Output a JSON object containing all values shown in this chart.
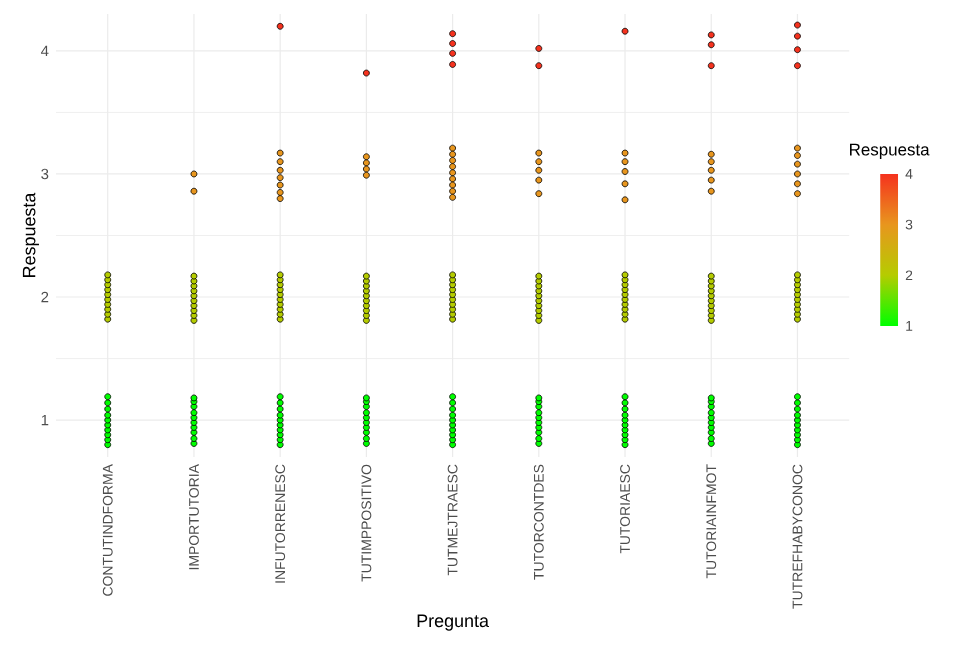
{
  "chart_data": {
    "type": "scatter",
    "xlabel": "Pregunta",
    "ylabel": "Respuesta",
    "clabel": "Respuesta",
    "categories": [
      "CONTUTINDFORMA",
      "IMPORTUTORIA",
      "INFUTORRENESC",
      "TUTIMPPOSITIVO",
      "TUTMEJTRAESC",
      "TUTORCONTDES",
      "TUTORIAESC",
      "TUTORIAINFMOT",
      "TUTREFHABYCONOC"
    ],
    "ylim": [
      0.7,
      4.3
    ],
    "yticks": [
      1,
      2,
      3,
      4
    ],
    "clim": [
      1,
      4
    ],
    "cticks": [
      1,
      2,
      3,
      4
    ],
    "grid": true,
    "marker": "circle",
    "series": [
      {
        "x": [
          "CONTUTINDFORMA",
          "CONTUTINDFORMA",
          "CONTUTINDFORMA",
          "CONTUTINDFORMA",
          "CONTUTINDFORMA",
          "CONTUTINDFORMA",
          "CONTUTINDFORMA",
          "CONTUTINDFORMA",
          "CONTUTINDFORMA",
          "CONTUTINDFORMA",
          "IMPORTUTORIA",
          "IMPORTUTORIA",
          "IMPORTUTORIA",
          "IMPORTUTORIA",
          "IMPORTUTORIA",
          "IMPORTUTORIA",
          "IMPORTUTORIA",
          "IMPORTUTORIA",
          "IMPORTUTORIA",
          "IMPORTUTORIA",
          "INFUTORRENESC",
          "INFUTORRENESC",
          "INFUTORRENESC",
          "INFUTORRENESC",
          "INFUTORRENESC",
          "INFUTORRENESC",
          "INFUTORRENESC",
          "INFUTORRENESC",
          "INFUTORRENESC",
          "INFUTORRENESC",
          "TUTIMPPOSITIVO",
          "TUTIMPPOSITIVO",
          "TUTIMPPOSITIVO",
          "TUTIMPPOSITIVO",
          "TUTIMPPOSITIVO",
          "TUTIMPPOSITIVO",
          "TUTIMPPOSITIVO",
          "TUTIMPPOSITIVO",
          "TUTIMPPOSITIVO",
          "TUTIMPPOSITIVO",
          "TUTMEJTRAESC",
          "TUTMEJTRAESC",
          "TUTMEJTRAESC",
          "TUTMEJTRAESC",
          "TUTMEJTRAESC",
          "TUTMEJTRAESC",
          "TUTMEJTRAESC",
          "TUTMEJTRAESC",
          "TUTMEJTRAESC",
          "TUTMEJTRAESC",
          "TUTORCONTDES",
          "TUTORCONTDES",
          "TUTORCONTDES",
          "TUTORCONTDES",
          "TUTORCONTDES",
          "TUTORCONTDES",
          "TUTORCONTDES",
          "TUTORCONTDES",
          "TUTORCONTDES",
          "TUTORCONTDES",
          "TUTORIAESC",
          "TUTORIAESC",
          "TUTORIAESC",
          "TUTORIAESC",
          "TUTORIAESC",
          "TUTORIAESC",
          "TUTORIAESC",
          "TUTORIAESC",
          "TUTORIAESC",
          "TUTORIAESC",
          "TUTORIAINFMOT",
          "TUTORIAINFMOT",
          "TUTORIAINFMOT",
          "TUTORIAINFMOT",
          "TUTORIAINFMOT",
          "TUTORIAINFMOT",
          "TUTORIAINFMOT",
          "TUTORIAINFMOT",
          "TUTORIAINFMOT",
          "TUTORIAINFMOT",
          "TUTREFHABYCONOC",
          "TUTREFHABYCONOC",
          "TUTREFHABYCONOC",
          "TUTREFHABYCONOC",
          "TUTREFHABYCONOC",
          "TUTREFHABYCONOC",
          "TUTREFHABYCONOC",
          "TUTREFHABYCONOC",
          "TUTREFHABYCONOC",
          "TUTREFHABYCONOC"
        ],
        "values": [
          0.8,
          0.84,
          0.88,
          0.92,
          0.96,
          1.0,
          1.04,
          1.09,
          1.14,
          1.19,
          0.81,
          0.85,
          0.9,
          0.94,
          0.98,
          1.02,
          1.06,
          1.11,
          1.15,
          1.18,
          0.8,
          0.84,
          0.88,
          0.92,
          0.96,
          1.0,
          1.04,
          1.09,
          1.14,
          1.19,
          0.81,
          0.85,
          0.9,
          0.94,
          0.98,
          1.02,
          1.06,
          1.11,
          1.15,
          1.18,
          0.8,
          0.84,
          0.88,
          0.92,
          0.96,
          1.0,
          1.04,
          1.09,
          1.14,
          1.19,
          0.81,
          0.85,
          0.9,
          0.94,
          0.98,
          1.02,
          1.06,
          1.11,
          1.15,
          1.18,
          0.8,
          0.84,
          0.88,
          0.92,
          0.96,
          1.0,
          1.04,
          1.09,
          1.14,
          1.19,
          0.81,
          0.85,
          0.9,
          0.94,
          0.98,
          1.02,
          1.06,
          1.11,
          1.15,
          1.18,
          0.8,
          0.84,
          0.88,
          0.92,
          0.96,
          1.0,
          1.04,
          1.09,
          1.14,
          1.19
        ],
        "cvalues": [
          1,
          1,
          1,
          1,
          1,
          1,
          1,
          1,
          1,
          1,
          1,
          1,
          1,
          1,
          1,
          1,
          1,
          1,
          1,
          1,
          1,
          1,
          1,
          1,
          1,
          1,
          1,
          1,
          1,
          1,
          1,
          1,
          1,
          1,
          1,
          1,
          1,
          1,
          1,
          1,
          1,
          1,
          1,
          1,
          1,
          1,
          1,
          1,
          1,
          1,
          1,
          1,
          1,
          1,
          1,
          1,
          1,
          1,
          1,
          1,
          1,
          1,
          1,
          1,
          1,
          1,
          1,
          1,
          1,
          1,
          1,
          1,
          1,
          1,
          1,
          1,
          1,
          1,
          1,
          1,
          1,
          1,
          1,
          1,
          1,
          1,
          1,
          1,
          1,
          1
        ]
      },
      {
        "x": [
          "CONTUTINDFORMA",
          "CONTUTINDFORMA",
          "CONTUTINDFORMA",
          "CONTUTINDFORMA",
          "CONTUTINDFORMA",
          "CONTUTINDFORMA",
          "CONTUTINDFORMA",
          "CONTUTINDFORMA",
          "CONTUTINDFORMA",
          "CONTUTINDFORMA",
          "IMPORTUTORIA",
          "IMPORTUTORIA",
          "IMPORTUTORIA",
          "IMPORTUTORIA",
          "IMPORTUTORIA",
          "IMPORTUTORIA",
          "IMPORTUTORIA",
          "IMPORTUTORIA",
          "IMPORTUTORIA",
          "IMPORTUTORIA",
          "INFUTORRENESC",
          "INFUTORRENESC",
          "INFUTORRENESC",
          "INFUTORRENESC",
          "INFUTORRENESC",
          "INFUTORRENESC",
          "INFUTORRENESC",
          "INFUTORRENESC",
          "INFUTORRENESC",
          "INFUTORRENESC",
          "TUTIMPPOSITIVO",
          "TUTIMPPOSITIVO",
          "TUTIMPPOSITIVO",
          "TUTIMPPOSITIVO",
          "TUTIMPPOSITIVO",
          "TUTIMPPOSITIVO",
          "TUTIMPPOSITIVO",
          "TUTIMPPOSITIVO",
          "TUTIMPPOSITIVO",
          "TUTIMPPOSITIVO",
          "TUTMEJTRAESC",
          "TUTMEJTRAESC",
          "TUTMEJTRAESC",
          "TUTMEJTRAESC",
          "TUTMEJTRAESC",
          "TUTMEJTRAESC",
          "TUTMEJTRAESC",
          "TUTMEJTRAESC",
          "TUTMEJTRAESC",
          "TUTMEJTRAESC",
          "TUTORCONTDES",
          "TUTORCONTDES",
          "TUTORCONTDES",
          "TUTORCONTDES",
          "TUTORCONTDES",
          "TUTORCONTDES",
          "TUTORCONTDES",
          "TUTORCONTDES",
          "TUTORCONTDES",
          "TUTORCONTDES",
          "TUTORIAESC",
          "TUTORIAESC",
          "TUTORIAESC",
          "TUTORIAESC",
          "TUTORIAESC",
          "TUTORIAESC",
          "TUTORIAESC",
          "TUTORIAESC",
          "TUTORIAESC",
          "TUTORIAESC",
          "TUTORIAINFMOT",
          "TUTORIAINFMOT",
          "TUTORIAINFMOT",
          "TUTORIAINFMOT",
          "TUTORIAINFMOT",
          "TUTORIAINFMOT",
          "TUTORIAINFMOT",
          "TUTORIAINFMOT",
          "TUTORIAINFMOT",
          "TUTORIAINFMOT",
          "TUTREFHABYCONOC",
          "TUTREFHABYCONOC",
          "TUTREFHABYCONOC",
          "TUTREFHABYCONOC",
          "TUTREFHABYCONOC",
          "TUTREFHABYCONOC",
          "TUTREFHABYCONOC",
          "TUTREFHABYCONOC",
          "TUTREFHABYCONOC",
          "TUTREFHABYCONOC"
        ],
        "values": [
          1.82,
          1.86,
          1.9,
          1.94,
          1.98,
          2.02,
          2.06,
          2.1,
          2.14,
          2.18,
          1.81,
          1.85,
          1.89,
          1.93,
          1.97,
          2.01,
          2.05,
          2.09,
          2.13,
          2.17,
          1.82,
          1.86,
          1.9,
          1.94,
          1.98,
          2.02,
          2.06,
          2.1,
          2.14,
          2.18,
          1.81,
          1.85,
          1.89,
          1.93,
          1.97,
          2.01,
          2.05,
          2.09,
          2.13,
          2.17,
          1.82,
          1.86,
          1.9,
          1.94,
          1.98,
          2.02,
          2.06,
          2.1,
          2.14,
          2.18,
          1.81,
          1.85,
          1.89,
          1.93,
          1.97,
          2.01,
          2.05,
          2.09,
          2.13,
          2.17,
          1.82,
          1.86,
          1.9,
          1.94,
          1.98,
          2.02,
          2.06,
          2.1,
          2.14,
          2.18,
          1.81,
          1.85,
          1.89,
          1.93,
          1.97,
          2.01,
          2.05,
          2.09,
          2.13,
          2.17,
          1.82,
          1.86,
          1.9,
          1.94,
          1.98,
          2.02,
          2.06,
          2.1,
          2.14,
          2.18
        ],
        "cvalues": [
          2,
          2,
          2,
          2,
          2,
          2,
          2,
          2,
          2,
          2,
          2,
          2,
          2,
          2,
          2,
          2,
          2,
          2,
          2,
          2,
          2,
          2,
          2,
          2,
          2,
          2,
          2,
          2,
          2,
          2,
          2,
          2,
          2,
          2,
          2,
          2,
          2,
          2,
          2,
          2,
          2,
          2,
          2,
          2,
          2,
          2,
          2,
          2,
          2,
          2,
          2,
          2,
          2,
          2,
          2,
          2,
          2,
          2,
          2,
          2,
          2,
          2,
          2,
          2,
          2,
          2,
          2,
          2,
          2,
          2,
          2,
          2,
          2,
          2,
          2,
          2,
          2,
          2,
          2,
          2,
          2,
          2,
          2,
          2,
          2,
          2,
          2,
          2,
          2,
          2
        ]
      },
      {
        "x": [
          "IMPORTUTORIA",
          "IMPORTUTORIA",
          "INFUTORRENESC",
          "INFUTORRENESC",
          "INFUTORRENESC",
          "INFUTORRENESC",
          "INFUTORRENESC",
          "INFUTORRENESC",
          "INFUTORRENESC",
          "TUTIMPPOSITIVO",
          "TUTIMPPOSITIVO",
          "TUTIMPPOSITIVO",
          "TUTIMPPOSITIVO",
          "TUTMEJTRAESC",
          "TUTMEJTRAESC",
          "TUTMEJTRAESC",
          "TUTMEJTRAESC",
          "TUTMEJTRAESC",
          "TUTMEJTRAESC",
          "TUTMEJTRAESC",
          "TUTMEJTRAESC",
          "TUTMEJTRAESC",
          "TUTORCONTDES",
          "TUTORCONTDES",
          "TUTORCONTDES",
          "TUTORCONTDES",
          "TUTORCONTDES",
          "TUTORIAESC",
          "TUTORIAESC",
          "TUTORIAESC",
          "TUTORIAESC",
          "TUTORIAESC",
          "TUTORIAINFMOT",
          "TUTORIAINFMOT",
          "TUTORIAINFMOT",
          "TUTORIAINFMOT",
          "TUTORIAINFMOT",
          "TUTREFHABYCONOC",
          "TUTREFHABYCONOC",
          "TUTREFHABYCONOC",
          "TUTREFHABYCONOC",
          "TUTREFHABYCONOC",
          "TUTREFHABYCONOC"
        ],
        "values": [
          3.0,
          2.86,
          3.17,
          3.1,
          3.03,
          2.97,
          2.91,
          2.85,
          2.8,
          3.14,
          3.09,
          3.04,
          2.99,
          3.21,
          3.16,
          3.11,
          3.06,
          3.01,
          2.96,
          2.91,
          2.86,
          2.81,
          3.17,
          3.1,
          3.03,
          2.95,
          2.84,
          3.17,
          3.1,
          3.02,
          2.92,
          2.79,
          3.16,
          3.1,
          3.03,
          2.95,
          2.86,
          3.21,
          3.15,
          3.08,
          3.0,
          2.92,
          2.84
        ],
        "cvalues": [
          3,
          3,
          3,
          3,
          3,
          3,
          3,
          3,
          3,
          3,
          3,
          3,
          3,
          3,
          3,
          3,
          3,
          3,
          3,
          3,
          3,
          3,
          3,
          3,
          3,
          3,
          3,
          3,
          3,
          3,
          3,
          3,
          3,
          3,
          3,
          3,
          3,
          3,
          3,
          3,
          3,
          3,
          3
        ]
      },
      {
        "x": [
          "INFUTORRENESC",
          "TUTIMPPOSITIVO",
          "TUTMEJTRAESC",
          "TUTMEJTRAESC",
          "TUTMEJTRAESC",
          "TUTMEJTRAESC",
          "TUTORCONTDES",
          "TUTORCONTDES",
          "TUTORIAESC",
          "TUTORIAINFMOT",
          "TUTORIAINFMOT",
          "TUTORIAINFMOT",
          "TUTREFHABYCONOC",
          "TUTREFHABYCONOC",
          "TUTREFHABYCONOC",
          "TUTREFHABYCONOC"
        ],
        "values": [
          4.2,
          3.82,
          4.14,
          4.06,
          3.98,
          3.89,
          3.88,
          4.02,
          4.16,
          4.13,
          4.05,
          3.88,
          4.21,
          4.12,
          4.01,
          3.88
        ],
        "cvalues": [
          4,
          4,
          4,
          4,
          4,
          4,
          4,
          4,
          4,
          4,
          4,
          4,
          4,
          4,
          4,
          4
        ]
      }
    ]
  }
}
